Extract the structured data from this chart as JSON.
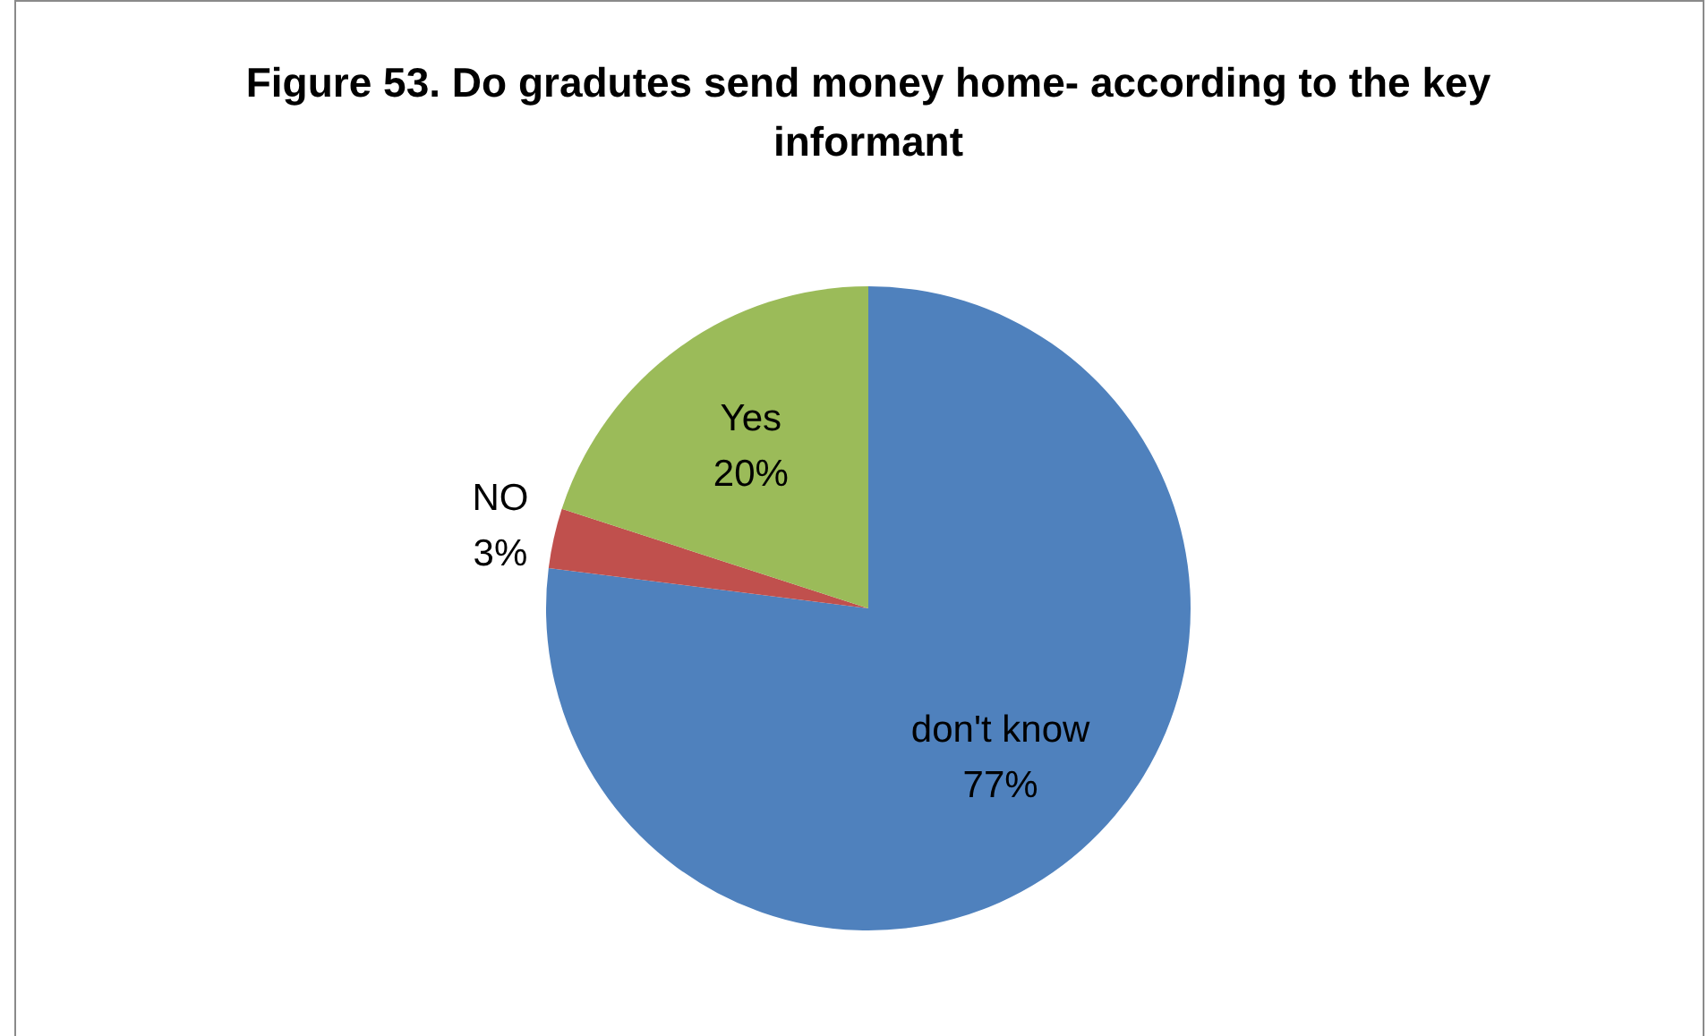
{
  "chart_data": {
    "type": "pie",
    "title": "Figure 53. Do gradutes send money home- according to the key informant",
    "categories": [
      "don't know",
      "NO",
      "Yes"
    ],
    "values": [
      77,
      3,
      20
    ],
    "colors": [
      "#4f81bd",
      "#c0504d",
      "#9bbb59"
    ],
    "value_labels": [
      "77%",
      "3%",
      "20%"
    ],
    "legend": false
  }
}
